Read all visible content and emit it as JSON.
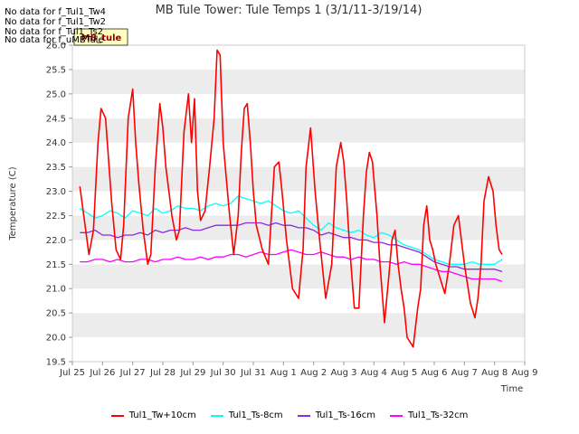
{
  "nodata_messages": [
    "No data for f_Tul1_Tw4",
    "No data for f_Tul1_Tw2",
    "No data for f_Tul1_Ts2",
    "No data for f_uMBTule"
  ],
  "badge_label": "MB_tule",
  "chart_data": {
    "type": "line",
    "title": "MB Tule Tower: Tule Temps 1 (3/1/11-3/19/14)",
    "xlabel": "Time",
    "ylabel": "Temperature (C)",
    "xlim": [
      0,
      15
    ],
    "ylim": [
      19.5,
      26.0
    ],
    "x_ticks": [
      0,
      1,
      2,
      3,
      4,
      5,
      6,
      7,
      8,
      9,
      10,
      11,
      12,
      13,
      14,
      15
    ],
    "x_tick_labels": [
      "Jul 25",
      "Jul 26",
      "Jul 27",
      "Jul 28",
      "Jul 29",
      "Jul 30",
      "Jul 31",
      "Aug 1",
      "Aug 2",
      "Aug 3",
      "Aug 4",
      "Aug 5",
      "Aug 6",
      "Aug 7",
      "Aug 8",
      "Aug 9"
    ],
    "y_ticks": [
      19.5,
      20.0,
      20.5,
      21.0,
      21.5,
      22.0,
      22.5,
      23.0,
      23.5,
      24.0,
      24.5,
      25.0,
      25.5,
      26.0
    ],
    "y_tick_labels": [
      "19.5",
      "20.0",
      "20.5",
      "21.0",
      "21.5",
      "22.0",
      "22.5",
      "23.0",
      "23.5",
      "24.0",
      "24.5",
      "25.0",
      "25.5",
      "26.0"
    ],
    "grid": "horizontal bands",
    "legend_position": "bottom",
    "series": [
      {
        "name": "Tul1_Tw+10cm",
        "color": "#ff0000",
        "x": [
          0.25,
          0.4,
          0.55,
          0.7,
          0.85,
          0.95,
          1.1,
          1.3,
          1.45,
          1.6,
          1.7,
          1.85,
          2.0,
          2.1,
          2.2,
          2.35,
          2.5,
          2.6,
          2.75,
          2.9,
          3.0,
          3.1,
          3.2,
          3.3,
          3.45,
          3.55,
          3.7,
          3.85,
          3.95,
          4.05,
          4.15,
          4.25,
          4.4,
          4.55,
          4.7,
          4.8,
          4.9,
          5.0,
          5.1,
          5.2,
          5.35,
          5.5,
          5.6,
          5.7,
          5.8,
          5.9,
          6.0,
          6.1,
          6.3,
          6.5,
          6.7,
          6.85,
          6.95,
          7.1,
          7.3,
          7.5,
          7.65,
          7.75,
          7.9,
          8.05,
          8.2,
          8.4,
          8.6,
          8.75,
          8.9,
          9.0,
          9.1,
          9.2,
          9.35,
          9.5,
          9.65,
          9.75,
          9.85,
          9.95,
          10.1,
          10.2,
          10.35,
          10.5,
          10.6,
          10.7,
          10.8,
          10.9,
          11.0,
          11.1,
          11.3,
          11.45,
          11.55,
          11.65,
          11.75,
          11.85,
          11.95,
          12.05,
          12.2,
          12.35,
          12.5,
          12.65,
          12.8,
          12.9,
          13.0,
          13.2,
          13.35,
          13.45,
          13.55,
          13.65,
          13.8,
          13.95,
          14.05,
          14.15,
          14.25
        ],
        "values": [
          23.1,
          22.4,
          21.7,
          22.2,
          24.0,
          24.7,
          24.5,
          22.8,
          21.8,
          21.6,
          22.3,
          24.5,
          25.1,
          24.0,
          23.2,
          22.2,
          21.5,
          21.7,
          23.5,
          24.8,
          24.3,
          23.5,
          23.0,
          22.5,
          22.0,
          22.2,
          24.2,
          25.0,
          24.0,
          24.9,
          23.0,
          22.4,
          22.6,
          23.5,
          24.5,
          25.9,
          25.8,
          24.0,
          23.3,
          22.6,
          21.7,
          22.5,
          23.8,
          24.7,
          24.8,
          24.0,
          23.0,
          22.3,
          21.8,
          21.5,
          23.5,
          23.6,
          23.0,
          22.0,
          21.0,
          20.8,
          21.8,
          23.5,
          24.3,
          23.0,
          22.0,
          20.8,
          21.5,
          23.5,
          24.0,
          23.6,
          22.8,
          21.8,
          20.6,
          20.6,
          22.5,
          23.4,
          23.8,
          23.6,
          22.5,
          21.5,
          20.3,
          21.3,
          22.0,
          22.2,
          21.5,
          21.0,
          20.6,
          20.0,
          19.8,
          20.6,
          21.0,
          22.3,
          22.7,
          22.0,
          21.8,
          21.5,
          21.2,
          20.9,
          21.5,
          22.3,
          22.5,
          22.0,
          21.5,
          20.7,
          20.4,
          20.8,
          21.5,
          22.8,
          23.3,
          23.0,
          22.3,
          21.8,
          21.7
        ]
      },
      {
        "name": "Tul1_Ts-8cm",
        "color": "#00ffff",
        "x": [
          0.25,
          0.5,
          0.75,
          1.0,
          1.25,
          1.5,
          1.75,
          2.0,
          2.25,
          2.5,
          2.75,
          3.0,
          3.25,
          3.5,
          3.75,
          4.0,
          4.25,
          4.5,
          4.75,
          5.0,
          5.25,
          5.5,
          5.75,
          6.0,
          6.25,
          6.5,
          6.75,
          7.0,
          7.25,
          7.5,
          7.75,
          8.0,
          8.25,
          8.5,
          8.75,
          9.0,
          9.25,
          9.5,
          9.75,
          10.0,
          10.25,
          10.5,
          10.75,
          11.0,
          11.25,
          11.5,
          11.75,
          12.0,
          12.25,
          12.5,
          12.75,
          13.0,
          13.25,
          13.5,
          13.75,
          14.0,
          14.25
        ],
        "values": [
          22.65,
          22.55,
          22.45,
          22.5,
          22.6,
          22.55,
          22.45,
          22.6,
          22.55,
          22.5,
          22.65,
          22.55,
          22.6,
          22.7,
          22.65,
          22.65,
          22.6,
          22.7,
          22.75,
          22.7,
          22.75,
          22.9,
          22.85,
          22.8,
          22.75,
          22.8,
          22.7,
          22.6,
          22.55,
          22.6,
          22.45,
          22.3,
          22.2,
          22.35,
          22.25,
          22.2,
          22.15,
          22.2,
          22.1,
          22.05,
          22.15,
          22.1,
          22.0,
          21.9,
          21.85,
          21.8,
          21.7,
          21.6,
          21.55,
          21.5,
          21.5,
          21.5,
          21.55,
          21.5,
          21.5,
          21.5,
          21.6
        ]
      },
      {
        "name": "Tul1_Ts-16cm",
        "color": "#8a2be2",
        "x": [
          0.25,
          0.5,
          0.75,
          1.0,
          1.25,
          1.5,
          1.75,
          2.0,
          2.25,
          2.5,
          2.75,
          3.0,
          3.25,
          3.5,
          3.75,
          4.0,
          4.25,
          4.5,
          4.75,
          5.0,
          5.25,
          5.5,
          5.75,
          6.0,
          6.25,
          6.5,
          6.75,
          7.0,
          7.25,
          7.5,
          7.75,
          8.0,
          8.25,
          8.5,
          8.75,
          9.0,
          9.25,
          9.5,
          9.75,
          10.0,
          10.25,
          10.5,
          10.75,
          11.0,
          11.25,
          11.5,
          11.75,
          12.0,
          12.25,
          12.5,
          12.75,
          13.0,
          13.25,
          13.5,
          13.75,
          14.0,
          14.25
        ],
        "values": [
          22.15,
          22.15,
          22.2,
          22.1,
          22.1,
          22.05,
          22.1,
          22.1,
          22.15,
          22.1,
          22.2,
          22.15,
          22.2,
          22.2,
          22.25,
          22.2,
          22.2,
          22.25,
          22.3,
          22.3,
          22.3,
          22.3,
          22.35,
          22.35,
          22.35,
          22.3,
          22.35,
          22.3,
          22.3,
          22.25,
          22.25,
          22.2,
          22.1,
          22.15,
          22.1,
          22.05,
          22.05,
          22.0,
          22.0,
          21.95,
          21.95,
          21.9,
          21.9,
          21.85,
          21.8,
          21.75,
          21.65,
          21.55,
          21.5,
          21.45,
          21.45,
          21.4,
          21.4,
          21.4,
          21.4,
          21.4,
          21.35
        ]
      },
      {
        "name": "Tul1_Ts-32cm",
        "color": "#ff00ff",
        "x": [
          0.25,
          0.5,
          0.75,
          1.0,
          1.25,
          1.5,
          1.75,
          2.0,
          2.25,
          2.5,
          2.75,
          3.0,
          3.25,
          3.5,
          3.75,
          4.0,
          4.25,
          4.5,
          4.75,
          5.0,
          5.25,
          5.5,
          5.75,
          6.0,
          6.25,
          6.5,
          6.75,
          7.0,
          7.25,
          7.5,
          7.75,
          8.0,
          8.25,
          8.5,
          8.75,
          9.0,
          9.25,
          9.5,
          9.75,
          10.0,
          10.25,
          10.5,
          10.75,
          11.0,
          11.25,
          11.5,
          11.75,
          12.0,
          12.25,
          12.5,
          12.75,
          13.0,
          13.25,
          13.5,
          13.75,
          14.0,
          14.25
        ],
        "values": [
          21.55,
          21.55,
          21.6,
          21.6,
          21.55,
          21.6,
          21.55,
          21.55,
          21.6,
          21.6,
          21.55,
          21.6,
          21.6,
          21.65,
          21.6,
          21.6,
          21.65,
          21.6,
          21.65,
          21.65,
          21.7,
          21.7,
          21.65,
          21.7,
          21.75,
          21.7,
          21.7,
          21.75,
          21.8,
          21.75,
          21.7,
          21.7,
          21.75,
          21.7,
          21.65,
          21.65,
          21.6,
          21.65,
          21.6,
          21.6,
          21.55,
          21.55,
          21.5,
          21.55,
          21.5,
          21.5,
          21.45,
          21.4,
          21.35,
          21.35,
          21.3,
          21.25,
          21.2,
          21.2,
          21.2,
          21.2,
          21.15
        ]
      }
    ]
  }
}
